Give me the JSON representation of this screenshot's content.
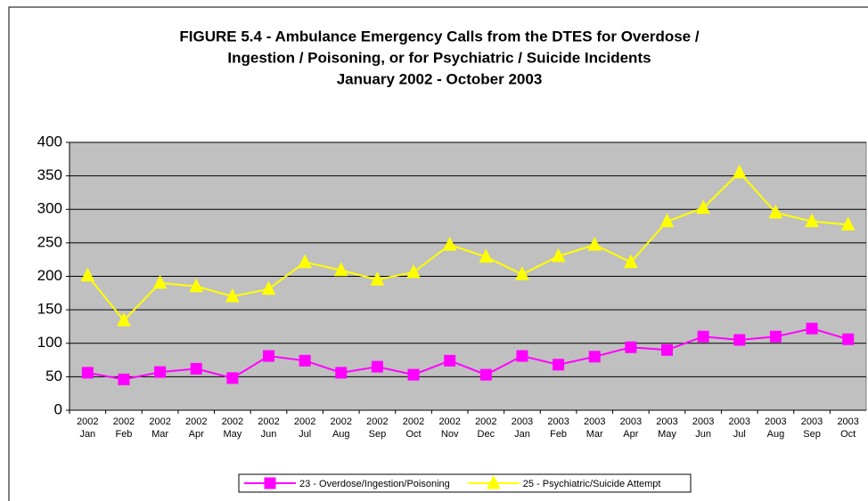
{
  "chart_data": {
    "type": "line",
    "title": [
      "FIGURE 5.4 - Ambulance Emergency Calls from the DTES for Overdose /",
      "Ingestion / Poisoning, or for Psychiatric / Suicide Incidents",
      "January 2002 - October 2003"
    ],
    "categories": [
      [
        "2002",
        "Jan"
      ],
      [
        "2002",
        "Feb"
      ],
      [
        "2002",
        "Mar"
      ],
      [
        "2002",
        "Apr"
      ],
      [
        "2002",
        "May"
      ],
      [
        "2002",
        "Jun"
      ],
      [
        "2002",
        "Jul"
      ],
      [
        "2002",
        "Aug"
      ],
      [
        "2002",
        "Sep"
      ],
      [
        "2002",
        "Oct"
      ],
      [
        "2002",
        "Nov"
      ],
      [
        "2002",
        "Dec"
      ],
      [
        "2003",
        "Jan"
      ],
      [
        "2003",
        "Feb"
      ],
      [
        "2003",
        "Mar"
      ],
      [
        "2003",
        "Apr"
      ],
      [
        "2003",
        "May"
      ],
      [
        "2003",
        "Jun"
      ],
      [
        "2003",
        "Jul"
      ],
      [
        "2003",
        "Aug"
      ],
      [
        "2003",
        "Sep"
      ],
      [
        "2003",
        "Oct"
      ]
    ],
    "series": [
      {
        "name": "23 - Overdose/Ingestion/Poisoning",
        "color": "#ff00ff",
        "marker": "square",
        "values": [
          56,
          46,
          57,
          62,
          48,
          81,
          74,
          56,
          65,
          53,
          74,
          53,
          81,
          68,
          80,
          94,
          90,
          110,
          105,
          110,
          122,
          106
        ]
      },
      {
        "name": "25 - Psychiatric/Suicide Attempt",
        "color": "#ffff00",
        "marker": "triangle",
        "values": [
          201,
          134,
          190,
          185,
          170,
          181,
          221,
          209,
          195,
          206,
          247,
          229,
          203,
          230,
          247,
          221,
          282,
          302,
          355,
          295,
          282,
          277
        ]
      }
    ],
    "ylim": [
      0,
      400
    ],
    "yticks": [
      0,
      50,
      100,
      150,
      200,
      250,
      300,
      350,
      400
    ],
    "grid": true,
    "legend": "bottom",
    "plot_background": "#c0c0c0"
  }
}
